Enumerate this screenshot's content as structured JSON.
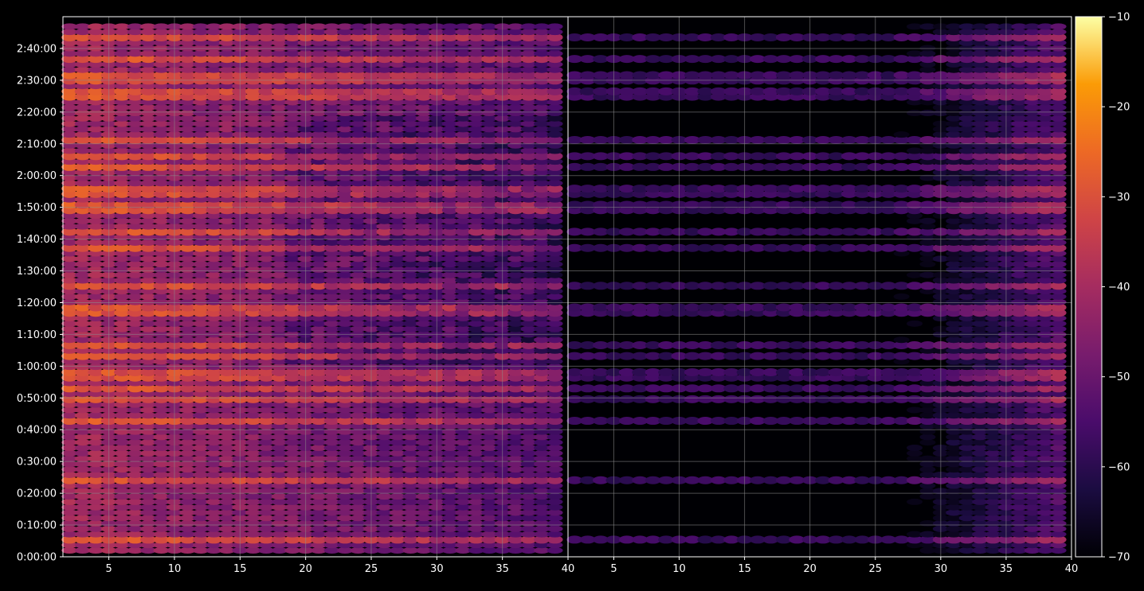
{
  "chart_data": {
    "type": "heatmap",
    "title": "",
    "xlabel": "",
    "ylabel": "",
    "panels": [
      {
        "name": "",
        "x_range": [
          1.5,
          40
        ],
        "x_ticks": [
          5,
          10,
          15,
          20,
          25,
          30,
          35,
          40
        ],
        "x_tick_labels": [
          "5",
          "10",
          "15",
          "20",
          "25",
          "30",
          "35",
          "40"
        ],
        "description_level": "high",
        "row_bands_min": [
          5,
          10,
          15,
          20,
          24,
          28,
          30,
          40,
          43,
          47,
          50,
          53,
          56,
          58,
          63,
          67,
          71,
          77,
          79,
          81,
          85,
          88,
          93,
          95,
          97,
          100,
          102,
          105,
          109,
          111,
          114,
          116,
          120,
          123,
          126,
          129,
          131,
          137,
          142,
          145,
          147,
          150,
          152,
          157,
          159,
          161,
          163
        ]
      },
      {
        "name": "",
        "x_range": [
          1.5,
          40
        ],
        "x_ticks": [
          5,
          10,
          15,
          20,
          25,
          30,
          35,
          40
        ],
        "x_tick_labels": [
          "5",
          "10",
          "15",
          "20",
          "25",
          "30",
          "35",
          "40"
        ],
        "description_level": "low; strongest at x>25"
      }
    ],
    "y_range_seconds": [
      0,
      10200
    ],
    "y_ticks": [
      "0:00:00",
      "0:10:00",
      "0:20:00",
      "0:30:00",
      "0:40:00",
      "0:50:00",
      "1:00:00",
      "1:10:00",
      "1:20:00",
      "1:30:00",
      "1:40:00",
      "1:50:00",
      "2:00:00",
      "2:10:00",
      "2:20:00",
      "2:30:00",
      "2:40:00"
    ],
    "colorbar": {
      "colormap": "inferno",
      "range": [
        -70,
        -10
      ],
      "ticks": [
        -10,
        -20,
        -30,
        -40,
        -50,
        -60,
        -70
      ],
      "tick_labels": [
        "−10",
        "−20",
        "−30",
        "−40",
        "−50",
        "−60",
        "−70"
      ]
    },
    "grid": true
  },
  "colors": {
    "background": "#000000",
    "axes": "#ffffff",
    "grid": "#8c8c8c"
  }
}
